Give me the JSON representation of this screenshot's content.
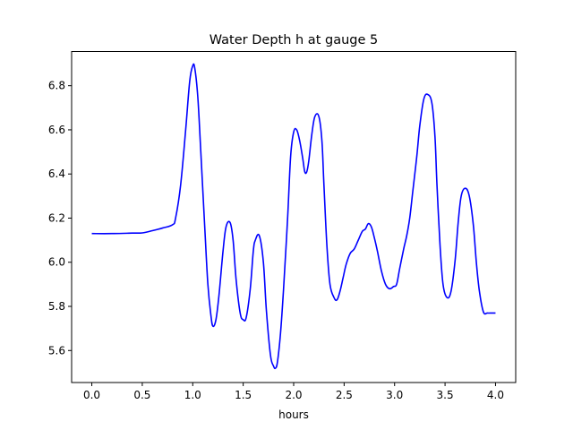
{
  "chart_data": {
    "type": "line",
    "title": "Water Depth h at gauge 5",
    "xlabel": "hours",
    "ylabel": "",
    "xlim": [
      -0.2,
      4.2
    ],
    "ylim": [
      5.455,
      6.955
    ],
    "x_ticks": [
      0.0,
      0.5,
      1.0,
      1.5,
      2.0,
      2.5,
      3.0,
      3.5,
      4.0
    ],
    "x_tick_labels": [
      "0.0",
      "0.5",
      "1.0",
      "1.5",
      "2.0",
      "2.5",
      "3.0",
      "3.5",
      "4.0"
    ],
    "y_ticks": [
      5.6,
      5.8,
      6.0,
      6.2,
      6.4,
      6.6,
      6.8
    ],
    "y_tick_labels": [
      "5.6",
      "5.8",
      "6.0",
      "6.2",
      "6.4",
      "6.6",
      "6.8"
    ],
    "grid": false,
    "legend": "none",
    "series": [
      {
        "color": "#0000ff",
        "x": [
          0.0,
          0.2,
          0.4,
          0.5,
          0.6,
          0.7,
          0.8,
          0.83,
          0.88,
          0.93,
          0.97,
          1.0,
          1.02,
          1.05,
          1.08,
          1.12,
          1.15,
          1.18,
          1.2,
          1.23,
          1.26,
          1.3,
          1.33,
          1.37,
          1.4,
          1.43,
          1.47,
          1.5,
          1.53,
          1.57,
          1.6,
          1.62,
          1.66,
          1.7,
          1.73,
          1.77,
          1.8,
          1.82,
          1.84,
          1.87,
          1.9,
          1.94,
          1.97,
          2.0,
          2.03,
          2.06,
          2.09,
          2.11,
          2.13,
          2.15,
          2.18,
          2.21,
          2.25,
          2.28,
          2.3,
          2.33,
          2.36,
          2.4,
          2.43,
          2.46,
          2.49,
          2.52,
          2.56,
          2.6,
          2.64,
          2.68,
          2.71,
          2.74,
          2.77,
          2.8,
          2.83,
          2.87,
          2.91,
          2.95,
          2.99,
          3.02,
          3.05,
          3.09,
          3.12,
          3.15,
          3.18,
          3.22,
          3.25,
          3.29,
          3.33,
          3.37,
          3.4,
          3.42,
          3.45,
          3.48,
          3.52,
          3.56,
          3.6,
          3.63,
          3.66,
          3.7,
          3.74,
          3.78,
          3.81,
          3.84,
          3.88,
          3.92,
          3.96,
          4.0
        ],
        "y": [
          6.13,
          6.13,
          6.132,
          6.133,
          6.143,
          6.155,
          6.17,
          6.2,
          6.35,
          6.6,
          6.82,
          6.89,
          6.88,
          6.75,
          6.5,
          6.15,
          5.9,
          5.76,
          5.71,
          5.74,
          5.85,
          6.05,
          6.16,
          6.18,
          6.1,
          5.92,
          5.77,
          5.74,
          5.75,
          5.88,
          6.05,
          6.1,
          6.12,
          6.0,
          5.78,
          5.58,
          5.53,
          5.52,
          5.55,
          5.68,
          5.88,
          6.2,
          6.48,
          6.59,
          6.6,
          6.55,
          6.47,
          6.41,
          6.41,
          6.46,
          6.58,
          6.66,
          6.66,
          6.55,
          6.35,
          6.07,
          5.9,
          5.84,
          5.83,
          5.87,
          5.93,
          5.99,
          6.04,
          6.06,
          6.1,
          6.14,
          6.15,
          6.175,
          6.16,
          6.11,
          6.05,
          5.96,
          5.9,
          5.88,
          5.89,
          5.9,
          5.97,
          6.06,
          6.12,
          6.2,
          6.32,
          6.48,
          6.62,
          6.74,
          6.76,
          6.72,
          6.57,
          6.35,
          6.08,
          5.9,
          5.84,
          5.87,
          6.01,
          6.18,
          6.3,
          6.335,
          6.3,
          6.17,
          6.0,
          5.87,
          5.775,
          5.77,
          5.77,
          5.77
        ]
      }
    ]
  },
  "style": {
    "line_color": "#0000ff",
    "axis_color": "#000000",
    "background": "#ffffff"
  }
}
